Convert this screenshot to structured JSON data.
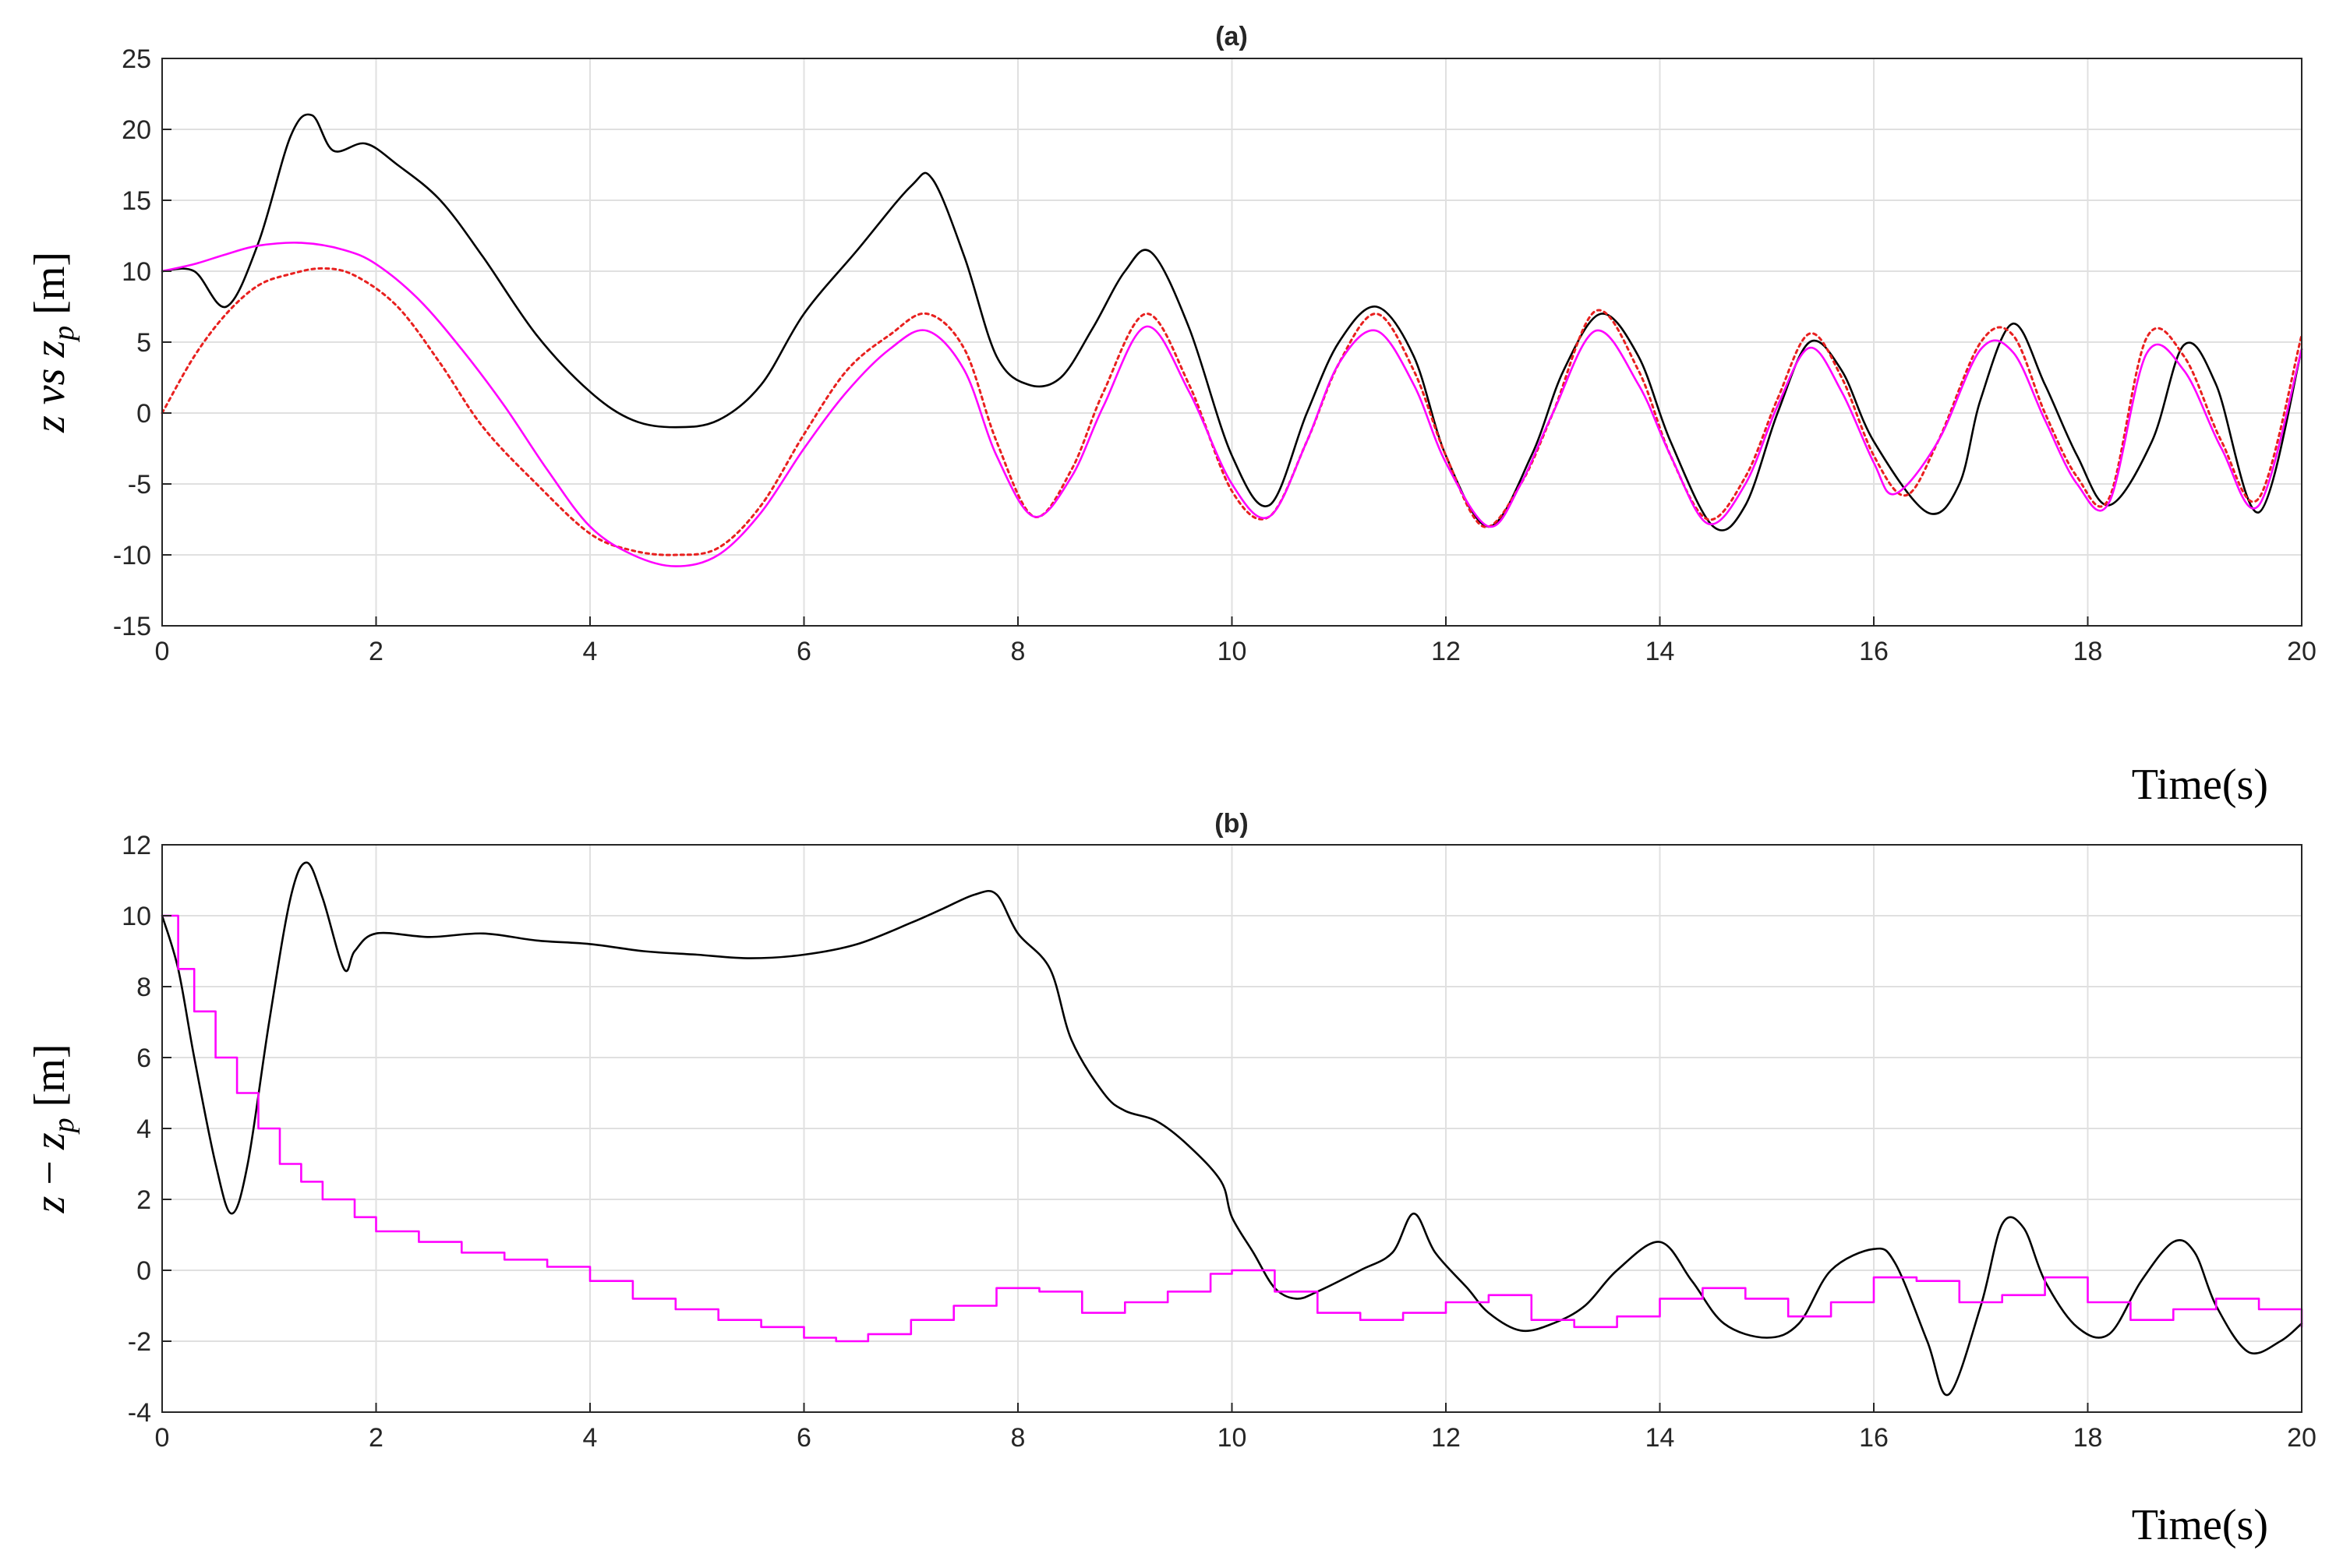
{
  "chart_data": [
    {
      "type": "line",
      "title": "(a)",
      "xlabel": "Time(s)",
      "ylabel": "z vs z_p [m]",
      "xlim": [
        0,
        20
      ],
      "ylim": [
        -15,
        25
      ],
      "xticks": [
        0,
        2,
        4,
        6,
        8,
        10,
        12,
        14,
        16,
        18,
        20
      ],
      "yticks": [
        -15,
        -10,
        -5,
        0,
        5,
        10,
        15,
        20,
        25
      ],
      "grid": true,
      "series": [
        {
          "color": "#000000",
          "style": "solid",
          "x": [
            0,
            0.3,
            0.6,
            0.9,
            1.2,
            1.4,
            1.6,
            1.9,
            2.2,
            2.6,
            3.0,
            3.5,
            4.0,
            4.4,
            4.8,
            5.2,
            5.6,
            6.0,
            6.5,
            7.0,
            7.2,
            7.5,
            7.8,
            8.1,
            8.4,
            8.7,
            9.0,
            9.25,
            9.6,
            10.0,
            10.35,
            10.7,
            11.0,
            11.35,
            11.7,
            12.0,
            12.4,
            12.8,
            13.1,
            13.45,
            13.8,
            14.1,
            14.5,
            14.8,
            15.1,
            15.4,
            15.7,
            16.0,
            16.5,
            16.8,
            17.0,
            17.3,
            17.6,
            17.9,
            18.2,
            18.6,
            18.9,
            19.2,
            19.6,
            20.0
          ],
          "y": [
            10,
            10,
            7.5,
            12,
            19.5,
            21,
            18.5,
            19,
            17.5,
            15,
            11,
            5.5,
            1.5,
            -0.5,
            -1,
            -0.5,
            2,
            7,
            11.5,
            16,
            16.5,
            11,
            4,
            2,
            2.5,
            6,
            10,
            11.3,
            6,
            -3,
            -6.5,
            0,
            5,
            7.5,
            4,
            -3,
            -8,
            -3,
            3,
            7,
            4,
            -2,
            -8,
            -6.5,
            0,
            5,
            3,
            -2,
            -7,
            -5,
            1,
            6.3,
            2,
            -3,
            -6.5,
            -2,
            4.8,
            2,
            -7,
            4.5
          ]
        },
        {
          "color": "#e8201f",
          "style": "dotted",
          "x": [
            0,
            0.3,
            0.6,
            0.9,
            1.2,
            1.5,
            1.8,
            2.2,
            2.6,
            3.0,
            3.5,
            4.0,
            4.4,
            4.8,
            5.2,
            5.6,
            6.0,
            6.4,
            6.8,
            7.15,
            7.5,
            7.8,
            8.15,
            8.5,
            8.8,
            9.2,
            9.6,
            10.0,
            10.35,
            10.7,
            11.0,
            11.35,
            11.7,
            12.0,
            12.35,
            12.7,
            13.0,
            13.4,
            13.8,
            14.1,
            14.45,
            14.8,
            15.1,
            15.4,
            15.7,
            16.0,
            16.3,
            16.6,
            17.0,
            17.3,
            17.6,
            17.9,
            18.2,
            18.55,
            18.9,
            19.25,
            19.6,
            20.0
          ],
          "y": [
            0,
            4,
            7,
            9,
            9.8,
            10.2,
            9.7,
            7.5,
            3.5,
            -1,
            -5,
            -8.5,
            -9.7,
            -10,
            -9.5,
            -6.5,
            -1.5,
            3,
            5.5,
            7,
            4.5,
            -2,
            -7.3,
            -4,
            1.5,
            7,
            2,
            -5.5,
            -7.3,
            -2,
            3.5,
            7,
            3,
            -3,
            -8,
            -5,
            0,
            7.2,
            3,
            -3,
            -7.5,
            -4.5,
            1,
            5.6,
            2.5,
            -3,
            -5.8,
            -2,
            5,
            5.5,
            0,
            -4.5,
            -6,
            5.3,
            4,
            -2,
            -6,
            5.5
          ]
        },
        {
          "color": "#ff00ff",
          "style": "solid",
          "x": [
            0,
            0.3,
            0.6,
            0.9,
            1.3,
            1.7,
            2.0,
            2.4,
            2.8,
            3.2,
            3.6,
            4.0,
            4.4,
            4.8,
            5.2,
            5.6,
            6.0,
            6.4,
            6.8,
            7.15,
            7.5,
            7.8,
            8.15,
            8.5,
            8.8,
            9.2,
            9.6,
            10.0,
            10.35,
            10.7,
            11.0,
            11.35,
            11.7,
            12.0,
            12.4,
            12.7,
            13.0,
            13.4,
            13.8,
            14.1,
            14.45,
            14.8,
            15.1,
            15.4,
            15.7,
            16.0,
            16.2,
            16.6,
            17.0,
            17.3,
            17.6,
            17.9,
            18.2,
            18.55,
            18.9,
            19.25,
            19.6,
            20.0
          ],
          "y": [
            10,
            10.5,
            11.2,
            11.8,
            12,
            11.5,
            10.5,
            8,
            4.5,
            0.5,
            -4,
            -8,
            -10,
            -10.8,
            -10,
            -7,
            -2.5,
            1.5,
            4.5,
            5.8,
            3,
            -3,
            -7.3,
            -4.5,
            0.5,
            6.1,
            1.5,
            -5,
            -7.3,
            -2,
            3.5,
            5.8,
            2,
            -3.5,
            -8,
            -5,
            0,
            5.8,
            2,
            -3,
            -7.8,
            -5,
            0.5,
            4.6,
            1.5,
            -3.5,
            -5.7,
            -2,
            4.5,
            4.3,
            -0.5,
            -5,
            -6.3,
            4.2,
            3,
            -2.5,
            -6.5,
            4.5
          ]
        }
      ]
    },
    {
      "type": "line",
      "title": "(b)",
      "xlabel": "Time(s)",
      "ylabel": "z − z_p [m]",
      "xlim": [
        0,
        20
      ],
      "ylim": [
        -4,
        12
      ],
      "xticks": [
        0,
        2,
        4,
        6,
        8,
        10,
        12,
        14,
        16,
        18,
        20
      ],
      "yticks": [
        -4,
        -2,
        0,
        2,
        4,
        6,
        8,
        10,
        12
      ],
      "grid": true,
      "series": [
        {
          "color": "#000000",
          "style": "solid",
          "x": [
            0,
            0.15,
            0.3,
            0.5,
            0.65,
            0.8,
            1.0,
            1.2,
            1.35,
            1.5,
            1.7,
            1.8,
            2.0,
            2.5,
            3.0,
            3.5,
            4.0,
            4.5,
            5.0,
            5.5,
            6.0,
            6.5,
            7.0,
            7.3,
            7.6,
            7.8,
            8.0,
            8.3,
            8.5,
            8.8,
            9.0,
            9.3,
            9.6,
            9.9,
            10.0,
            10.2,
            10.4,
            10.6,
            10.8,
            11.2,
            11.5,
            11.7,
            11.9,
            12.2,
            12.4,
            12.7,
            13.0,
            13.3,
            13.6,
            14.0,
            14.3,
            14.6,
            15.0,
            15.3,
            15.6,
            16.0,
            16.2,
            16.5,
            16.7,
            17.0,
            17.2,
            17.4,
            17.6,
            17.9,
            18.2,
            18.5,
            18.8,
            19.0,
            19.2,
            19.5,
            19.8,
            20.0
          ],
          "y": [
            10,
            8.5,
            6,
            3,
            1.6,
            3,
            7,
            10.5,
            11.5,
            10.5,
            8.5,
            9,
            9.5,
            9.4,
            9.5,
            9.3,
            9.2,
            9,
            8.9,
            8.8,
            8.9,
            9.2,
            9.8,
            10.2,
            10.6,
            10.6,
            9.5,
            8.5,
            6.5,
            5,
            4.5,
            4.2,
            3.5,
            2.5,
            1.5,
            0.5,
            -0.5,
            -0.8,
            -0.6,
            0,
            0.5,
            1.6,
            0.5,
            -0.5,
            -1.2,
            -1.7,
            -1.5,
            -1,
            0,
            0.8,
            -0.3,
            -1.5,
            -1.9,
            -1.5,
            0,
            0.6,
            0.2,
            -2,
            -3.5,
            -1,
            1.3,
            1.2,
            -0.3,
            -1.6,
            -1.8,
            -0.3,
            0.8,
            0.5,
            -1,
            -2.3,
            -2,
            -1.5
          ]
        },
        {
          "color": "#ff00ff",
          "style": "steps",
          "x": [
            0,
            0.15,
            0.3,
            0.5,
            0.7,
            0.9,
            1.1,
            1.3,
            1.5,
            1.8,
            2.0,
            2.4,
            2.8,
            3.2,
            3.6,
            4.0,
            4.4,
            4.8,
            5.2,
            5.6,
            6.0,
            6.3,
            6.6,
            7.0,
            7.4,
            7.8,
            8.2,
            8.6,
            9.0,
            9.4,
            9.8,
            10.0,
            10.4,
            10.8,
            11.2,
            11.6,
            12.0,
            12.4,
            12.8,
            13.2,
            13.6,
            14.0,
            14.4,
            14.8,
            15.2,
            15.6,
            16.0,
            16.4,
            16.8,
            17.2,
            17.6,
            18.0,
            18.4,
            18.8,
            19.2,
            19.6,
            20.0
          ],
          "y": [
            10,
            8.5,
            7.3,
            6,
            5,
            4,
            3,
            2.5,
            2,
            1.5,
            1.1,
            0.8,
            0.5,
            0.3,
            0.1,
            -0.3,
            -0.8,
            -1.1,
            -1.4,
            -1.6,
            -1.9,
            -2,
            -1.8,
            -1.4,
            -1,
            -0.5,
            -0.6,
            -1.2,
            -0.9,
            -0.6,
            -0.1,
            0,
            -0.6,
            -1.2,
            -1.4,
            -1.2,
            -0.9,
            -0.7,
            -1.4,
            -1.6,
            -1.3,
            -0.8,
            -0.5,
            -0.8,
            -1.3,
            -0.9,
            -0.2,
            -0.3,
            -0.9,
            -0.7,
            -0.2,
            -0.9,
            -1.4,
            -1.1,
            -0.8,
            -1.1,
            -1.6
          ]
        }
      ]
    }
  ]
}
